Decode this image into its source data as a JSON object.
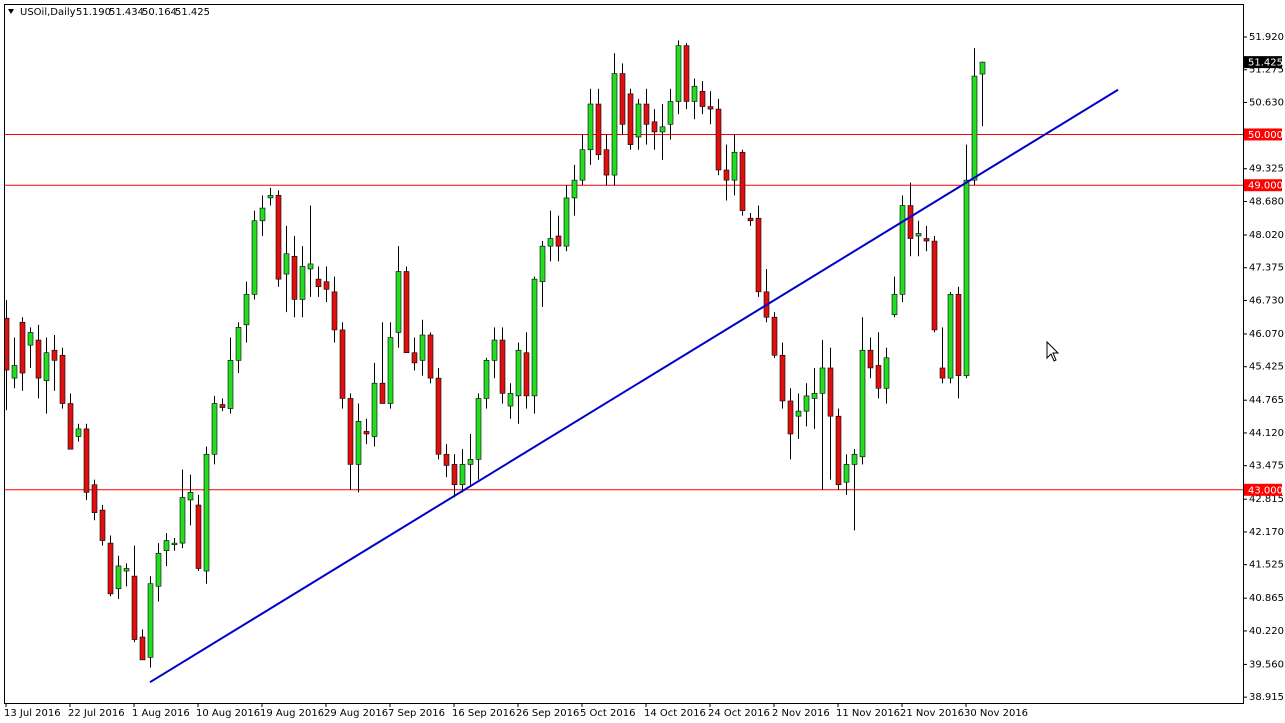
{
  "chart_data": {
    "type": "candlestick",
    "symbol": "USOil,Daily",
    "header_values": [
      {
        "value": 51.19,
        "label": "51.190"
      },
      51.434,
      50.164,
      51.425
    ],
    "categories": [
      "13 Jul 2016",
      null,
      null,
      null,
      null,
      null,
      null,
      null,
      "22 Jul 2016",
      null,
      null,
      null,
      null,
      null,
      null,
      null,
      "1 Aug 2016",
      null,
      null,
      null,
      null,
      null,
      null,
      null,
      "10 Aug 2016",
      null,
      null,
      null,
      null,
      null,
      null,
      null,
      "19 Aug 2016",
      null,
      null,
      null,
      null,
      null,
      null,
      null,
      "29 Aug 2016",
      null,
      null,
      null,
      null,
      null,
      null,
      null,
      "7 Sep 2016",
      null,
      null,
      null,
      null,
      null,
      null,
      null,
      "16 Sep 2016",
      null,
      null,
      null,
      null,
      null,
      null,
      null,
      "26 Sep 2016",
      null,
      null,
      null,
      null,
      null,
      null,
      null,
      "5 Oct 2016",
      null,
      null,
      null,
      null,
      null,
      null,
      null,
      "14 Oct 2016",
      null,
      null,
      null,
      null,
      null,
      null,
      null,
      "24 Oct 2016",
      null,
      null,
      null,
      null,
      null,
      null,
      null,
      "2 Nov 2016",
      null,
      null,
      null,
      null,
      null,
      null,
      null,
      "11 Nov 2016",
      null,
      null,
      null,
      null,
      null,
      null,
      null,
      "21 Nov 2016",
      null,
      null,
      null,
      null,
      null,
      null,
      null,
      "30 Nov 2016",
      null,
      null
    ],
    "open": [
      46.38,
      45.2,
      46.3,
      45.85,
      45.95,
      45.15,
      45.75,
      45.65,
      44.7,
      44.05,
      44.2,
      43.1,
      42.6,
      41.95,
      41.05,
      41.4,
      41.3,
      40.1,
      39.7,
      41.1,
      41.8,
      41.92,
      41.95,
      42.8,
      42.7,
      41.4,
      43.7,
      44.68,
      44.6,
      45.55,
      46.25,
      46.85,
      48.3,
      48.75,
      48.8,
      47.25,
      47.6,
      46.75,
      47.35,
      47.15,
      47.1,
      46.9,
      46.15,
      44.8,
      43.5,
      44.15,
      44.05,
      45.1,
      44.7,
      46.1,
      47.3,
      45.7,
      45.55,
      46.05,
      45.2,
      43.7,
      43.5,
      43.1,
      43.5,
      43.6,
      44.8,
      45.55,
      45.95,
      44.65,
      44.85,
      45.7,
      44.85,
      47.1,
      47.8,
      48.0,
      47.8,
      48.75,
      49.1,
      49.7,
      50.6,
      49.7,
      49.2,
      51.2,
      50.8,
      49.95,
      50.6,
      50.25,
      50.05,
      50.2,
      50.65,
      51.75,
      50.65,
      50.85,
      50.55,
      50.5,
      49.3,
      49.1,
      49.65,
      48.35,
      48.35,
      46.9,
      46.4,
      45.65,
      44.75,
      44.45,
      44.55,
      44.8,
      44.9,
      45.4,
      44.45,
      43.15,
      43.5,
      43.65,
      45.75,
      45.45,
      45.0,
      46.45,
      46.85,
      48.6,
      48.0,
      47.95,
      47.9,
      45.4,
      45.2,
      46.85,
      45.25,
      49.1,
      51.19
    ],
    "high": [
      46.74,
      46.0,
      46.4,
      46.2,
      46.25,
      46.0,
      46.05,
      45.8,
      44.9,
      44.3,
      44.3,
      43.2,
      42.7,
      42.1,
      41.7,
      41.55,
      41.9,
      40.25,
      41.3,
      41.95,
      42.15,
      42.05,
      43.4,
      43.3,
      42.9,
      43.85,
      44.85,
      44.8,
      46.0,
      46.3,
      47.1,
      48.5,
      48.8,
      48.95,
      48.9,
      48.2,
      48.0,
      47.8,
      48.6,
      47.4,
      47.4,
      47.2,
      46.3,
      44.9,
      44.7,
      44.4,
      45.5,
      46.3,
      46.3,
      47.8,
      47.4,
      46.0,
      46.35,
      46.1,
      45.4,
      43.9,
      43.7,
      43.8,
      44.1,
      44.9,
      45.6,
      46.2,
      46.2,
      45.1,
      45.9,
      46.1,
      47.2,
      47.9,
      48.5,
      48.4,
      49.0,
      49.4,
      50.0,
      50.9,
      50.9,
      50.0,
      51.6,
      51.4,
      50.9,
      50.7,
      50.9,
      50.5,
      50.6,
      50.9,
      51.85,
      51.8,
      51.1,
      51.05,
      50.85,
      50.7,
      49.8,
      50.0,
      49.7,
      48.45,
      48.6,
      47.35,
      46.5,
      45.9,
      45.0,
      44.9,
      45.1,
      45.4,
      45.95,
      45.8,
      44.6,
      43.7,
      43.8,
      46.4,
      46.0,
      46.1,
      45.8,
      47.2,
      48.8,
      49.05,
      48.3,
      48.2,
      48.0,
      46.2,
      46.9,
      47.0,
      49.8,
      51.7,
      51.434
    ],
    "low": [
      44.57,
      45.0,
      44.95,
      45.4,
      44.8,
      44.5,
      44.95,
      44.6,
      43.8,
      43.95,
      42.8,
      42.4,
      41.9,
      40.9,
      40.85,
      41.1,
      40.0,
      39.65,
      39.5,
      40.8,
      41.5,
      41.8,
      41.85,
      42.3,
      41.4,
      41.15,
      43.5,
      44.55,
      44.5,
      45.3,
      45.9,
      46.75,
      48.0,
      48.6,
      47.0,
      46.5,
      46.4,
      46.4,
      46.8,
      46.8,
      46.7,
      45.9,
      44.6,
      43.0,
      42.95,
      43.9,
      43.85,
      44.7,
      44.6,
      45.8,
      45.7,
      45.35,
      45.25,
      45.1,
      43.6,
      43.25,
      42.85,
      42.95,
      43.1,
      43.2,
      44.6,
      45.2,
      44.7,
      44.4,
      44.3,
      44.6,
      44.5,
      46.6,
      47.5,
      47.5,
      47.7,
      48.4,
      49.0,
      49.4,
      49.5,
      49.0,
      49.0,
      50.0,
      49.7,
      49.7,
      49.8,
      49.7,
      49.5,
      49.9,
      50.4,
      50.5,
      50.3,
      50.4,
      50.2,
      49.2,
      48.7,
      48.8,
      48.4,
      48.2,
      46.8,
      46.3,
      45.6,
      44.6,
      43.6,
      44.0,
      44.25,
      44.2,
      43.0,
      43.2,
      43.0,
      42.9,
      42.2,
      43.5,
      45.2,
      44.8,
      44.7,
      46.4,
      46.7,
      47.6,
      47.6,
      47.7,
      46.1,
      45.1,
      45.1,
      44.8,
      45.2,
      49.0,
      50.164
    ],
    "close": [
      45.36,
      45.45,
      45.3,
      46.1,
      45.2,
      45.7,
      45.55,
      44.7,
      43.8,
      44.2,
      42.95,
      42.55,
      42.0,
      40.95,
      41.5,
      41.45,
      40.05,
      39.65,
      41.15,
      41.75,
      42.0,
      41.95,
      42.85,
      42.95,
      41.45,
      43.7,
      44.7,
      44.62,
      45.55,
      46.2,
      46.85,
      48.3,
      48.55,
      48.8,
      47.15,
      47.65,
      46.75,
      47.4,
      47.45,
      47.0,
      46.95,
      46.15,
      44.8,
      43.5,
      44.35,
      44.1,
      45.1,
      44.7,
      46.0,
      47.3,
      45.7,
      45.5,
      46.05,
      45.2,
      43.7,
      43.48,
      43.1,
      43.5,
      43.6,
      44.8,
      45.55,
      45.95,
      44.9,
      44.9,
      45.75,
      44.85,
      47.15,
      47.8,
      47.95,
      47.8,
      48.75,
      49.1,
      49.7,
      50.6,
      49.6,
      49.2,
      51.2,
      50.2,
      49.8,
      50.6,
      50.2,
      50.05,
      50.15,
      50.65,
      51.75,
      50.65,
      50.95,
      50.55,
      50.5,
      49.3,
      49.1,
      49.65,
      48.5,
      48.3,
      46.9,
      46.4,
      45.65,
      44.75,
      44.1,
      44.55,
      44.85,
      44.9,
      45.4,
      44.45,
      43.1,
      43.5,
      43.7,
      45.75,
      45.4,
      45.0,
      45.6,
      46.85,
      48.6,
      47.95,
      48.05,
      47.9,
      46.15,
      45.2,
      46.85,
      45.25,
      49.1,
      51.15,
      51.425
    ],
    "up_color": "#22dd22",
    "down_color": "#e01010",
    "ylim": [
      38.8,
      52.57
    ],
    "yticks": [
      {
        "value": 51.92,
        "label": "51.920"
      },
      51.275,
      {
        "value": 50.63,
        "label": "50.630"
      },
      49.325,
      {
        "value": 48.68,
        "label": "48.680"
      },
      {
        "value": 48.02,
        "label": "48.020"
      },
      47.375,
      {
        "value": 46.73,
        "label": "46.730"
      },
      {
        "value": 46.07,
        "label": "46.070"
      },
      45.425,
      44.765,
      {
        "value": 44.12,
        "label": "44.120"
      },
      43.475,
      42.815,
      {
        "value": 42.17,
        "label": "42.170"
      },
      41.525,
      40.865,
      {
        "value": 40.22,
        "label": "40.220"
      },
      {
        "value": 39.56,
        "label": "39.560"
      },
      38.915
    ],
    "hlines": [
      {
        "value": 50,
        "label": "50.000"
      },
      {
        "value": 49,
        "label": "49.000"
      },
      {
        "value": 43,
        "label": "43.000"
      }
    ],
    "hline_color": "#ff0000",
    "trendline": {
      "x": [
        18,
        139
      ],
      "y": [
        39.21,
        50.88
      ],
      "color": "#0000cc"
    },
    "last_price": 51.425
  }
}
